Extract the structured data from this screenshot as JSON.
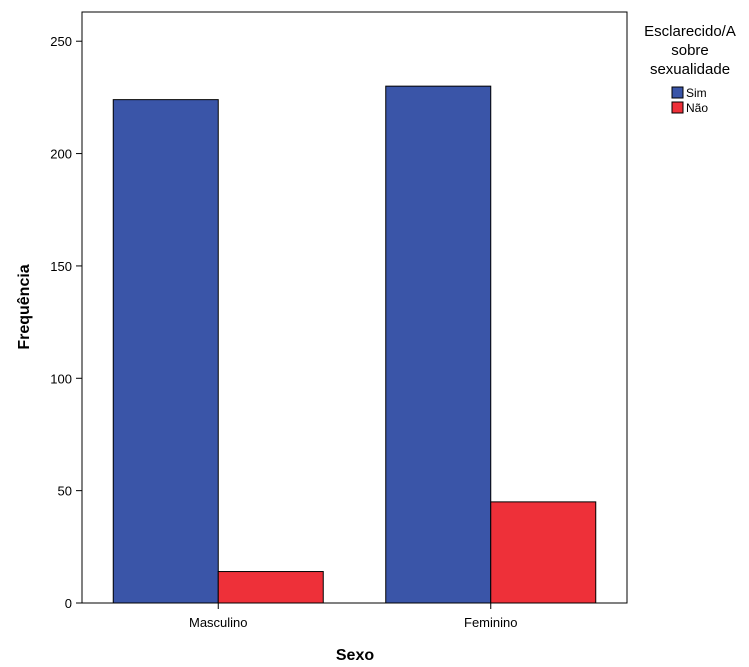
{
  "chart_data": {
    "type": "bar",
    "title": "",
    "xlabel": "Sexo",
    "ylabel": "Frequência",
    "categories": [
      "Masculino",
      "Feminino"
    ],
    "series": [
      {
        "name": "Sim",
        "values": [
          224,
          230
        ],
        "color": "#3a55a8"
      },
      {
        "name": "Não",
        "values": [
          14,
          45
        ],
        "color": "#ee3039"
      }
    ],
    "ylim": [
      0,
      263
    ],
    "yticks": [
      0,
      50,
      100,
      150,
      200,
      250
    ],
    "grid": false,
    "legend": {
      "title_lines": [
        "Esclarecido/A",
        "sobre",
        "sexualidade"
      ],
      "position": "right"
    }
  }
}
